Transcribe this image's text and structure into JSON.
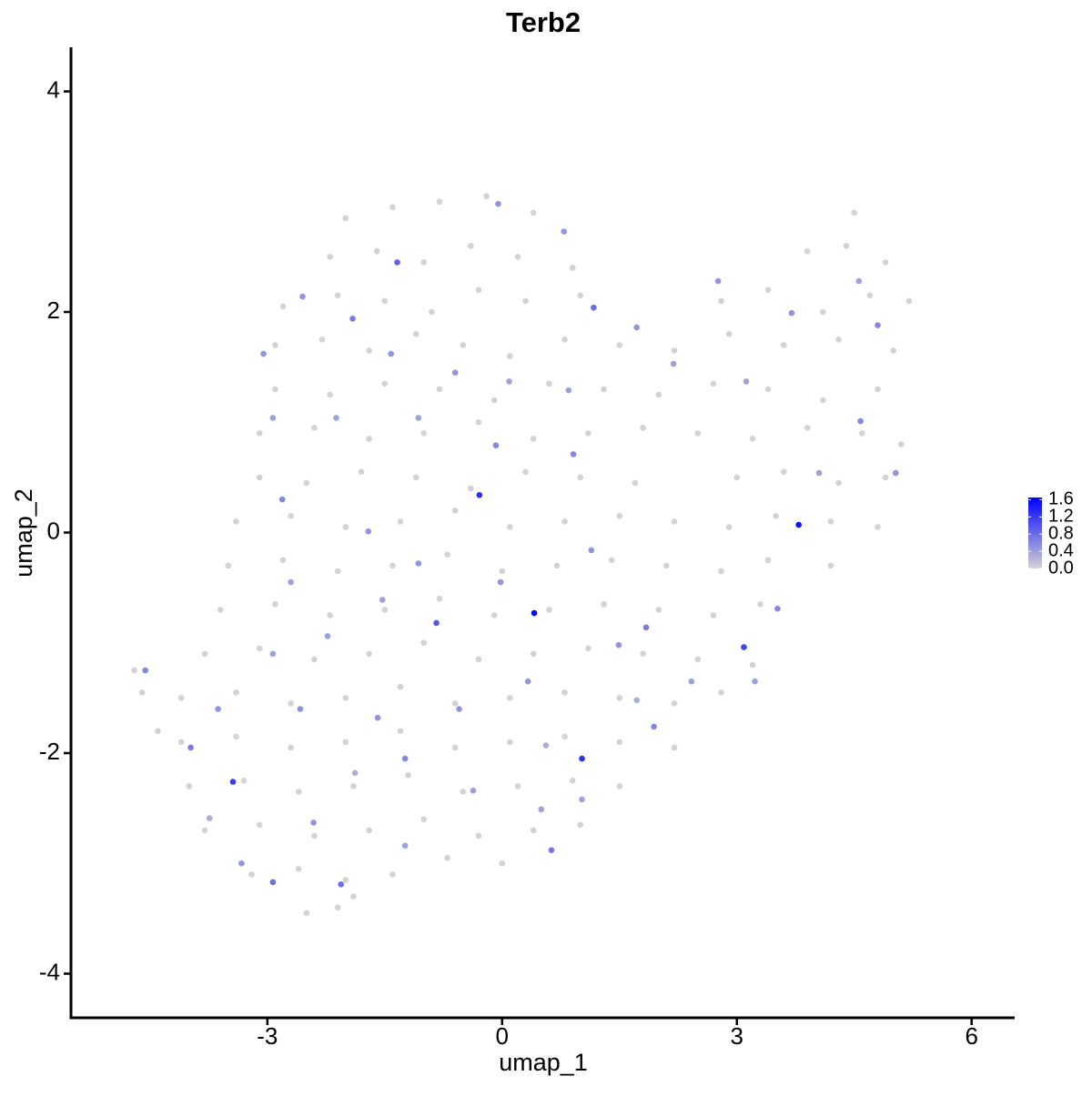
{
  "chart_data": {
    "type": "scatter",
    "title": "Terb2",
    "x_label": "umap_1",
    "y_label": "umap_2",
    "xlim": [
      -5.51,
      6.55
    ],
    "xticks": [
      -3,
      0,
      3,
      6
    ],
    "ylim": [
      -4.4,
      4.4
    ],
    "yticks": [
      -4,
      -2,
      0,
      2,
      4
    ],
    "color_low": "#d3d3d3",
    "color_high": "#0000ff",
    "color_lim": [
      0,
      1.65
    ],
    "color_ticks": [
      {
        "value": 0,
        "label": "0.0"
      },
      {
        "value": 0.4,
        "label": "0.4"
      },
      {
        "value": 0.8,
        "label": "0.8"
      },
      {
        "value": 1.2,
        "label": "1.2"
      },
      {
        "value": 1.6,
        "label": "1.6"
      }
    ],
    "x": [
      -2.0,
      -1.4,
      -0.8,
      -0.2,
      0.4,
      4.5,
      -2.2,
      -1.6,
      -1.0,
      -0.4,
      0.2,
      0.9,
      3.9,
      4.4,
      4.9,
      -2.8,
      -2.1,
      -1.5,
      -0.9,
      -0.3,
      0.3,
      1.0,
      2.8,
      3.4,
      4.1,
      4.7,
      5.2,
      -2.9,
      -2.3,
      -1.7,
      -1.1,
      -0.5,
      0.1,
      0.8,
      1.5,
      2.2,
      2.9,
      3.6,
      4.3,
      5.0,
      -2.9,
      -2.2,
      -1.5,
      -0.8,
      -0.1,
      0.6,
      1.3,
      2.0,
      2.7,
      3.4,
      4.1,
      4.8,
      -3.1,
      -2.4,
      -1.7,
      -1.0,
      -0.3,
      0.4,
      1.1,
      1.8,
      2.5,
      3.2,
      3.9,
      4.6,
      5.1,
      -3.1,
      -2.5,
      -1.8,
      -1.1,
      -0.4,
      0.3,
      1.0,
      1.7,
      3.0,
      3.6,
      4.3,
      4.9,
      -3.4,
      -2.7,
      -2.0,
      -1.3,
      -0.6,
      0.1,
      0.8,
      1.5,
      2.2,
      2.9,
      3.5,
      4.2,
      4.8,
      -3.5,
      -2.8,
      -2.1,
      -1.4,
      -0.7,
      0.0,
      0.7,
      1.4,
      2.1,
      2.8,
      3.4,
      4.2,
      -3.6,
      -2.9,
      -2.2,
      -1.5,
      -0.8,
      -0.1,
      0.6,
      1.3,
      2.0,
      2.7,
      3.3,
      -3.8,
      -3.1,
      -2.4,
      -1.7,
      -1.0,
      -0.3,
      0.4,
      1.1,
      1.8,
      2.5,
      3.2,
      -4.1,
      -3.4,
      -2.7,
      -2.0,
      -1.3,
      -0.6,
      0.1,
      0.8,
      1.5,
      2.2,
      2.8,
      -4.1,
      -3.4,
      -2.7,
      -2.0,
      -1.3,
      -0.6,
      0.1,
      0.8,
      1.5,
      2.2,
      -4.0,
      -3.3,
      -2.6,
      -1.9,
      -1.2,
      -0.5,
      0.2,
      0.9,
      1.5,
      -3.8,
      -3.1,
      -2.4,
      -1.7,
      -1.0,
      -0.3,
      0.4,
      1.0,
      -3.2,
      -2.6,
      -2.0,
      -1.4,
      -0.7,
      0.0,
      -2.5,
      -2.1,
      -1.9,
      -4.7,
      -4.6,
      -4.4,
      0.41,
      3.79,
      -0.29,
      1.02,
      -3.44,
      3.09,
      -0.84,
      -1.34,
      1.17,
      -1.91,
      -3.98,
      -2.93,
      -2.06,
      0.63,
      1.84,
      3.52,
      4.58,
      4.8,
      -1.24,
      -2.81,
      -0.08,
      0.91,
      1.94,
      -4.56,
      -0.05,
      0.79,
      -2.55,
      -3.05,
      -1.42,
      -0.6,
      1.72,
      2.76,
      3.7,
      5.03,
      -1.71,
      -1.07,
      -0.02,
      1.14,
      -3.63,
      -2.58,
      -1.59,
      -0.55,
      0.33,
      1.49,
      -3.33,
      -2.41,
      -1.24,
      -0.37,
      0.5,
      1.02,
      2.42,
      3.23,
      4.05,
      3.12,
      2.19,
      -2.93,
      -2.12,
      -1.07,
      0.09,
      0.85,
      -2.7,
      -2.23,
      -2.93,
      -1.53,
      4.56,
      0.56,
      1.72,
      -3.74,
      -1.88
    ],
    "values": [
      2.85,
      2.95,
      3.0,
      3.05,
      2.9,
      2.9,
      2.5,
      2.55,
      2.45,
      2.6,
      2.5,
      2.4,
      2.55,
      2.6,
      2.45,
      2.05,
      2.15,
      2.1,
      2.0,
      2.2,
      2.1,
      2.15,
      2.1,
      2.2,
      2.0,
      2.15,
      2.1,
      1.7,
      1.75,
      1.65,
      1.8,
      1.7,
      1.6,
      1.75,
      1.7,
      1.65,
      1.8,
      1.7,
      1.75,
      1.65,
      1.3,
      1.25,
      1.35,
      1.3,
      1.2,
      1.35,
      1.3,
      1.25,
      1.35,
      1.3,
      1.2,
      1.3,
      0.9,
      0.95,
      0.85,
      0.9,
      1.0,
      0.85,
      0.9,
      0.95,
      0.9,
      0.85,
      0.95,
      0.9,
      0.8,
      0.5,
      0.45,
      0.55,
      0.5,
      0.4,
      0.55,
      0.5,
      0.45,
      0.5,
      0.55,
      0.45,
      0.5,
      0.1,
      0.15,
      0.05,
      0.1,
      0.2,
      0.05,
      0.1,
      0.15,
      0.1,
      0.05,
      0.15,
      0.1,
      0.05,
      -0.3,
      -0.25,
      -0.35,
      -0.3,
      -0.2,
      -0.35,
      -0.3,
      -0.25,
      -0.3,
      -0.35,
      -0.25,
      -0.3,
      -0.7,
      -0.65,
      -0.75,
      -0.7,
      -0.6,
      -0.75,
      -0.7,
      -0.65,
      -0.7,
      -0.75,
      -0.65,
      -1.1,
      -1.05,
      -1.15,
      -1.1,
      -1.0,
      -1.15,
      -1.1,
      -1.05,
      -1.1,
      -1.15,
      -1.2,
      -1.5,
      -1.45,
      -1.55,
      -1.5,
      -1.4,
      -1.55,
      -1.5,
      -1.45,
      -1.5,
      -1.55,
      -1.45,
      -1.9,
      -1.85,
      -1.95,
      -1.9,
      -1.8,
      -1.95,
      -1.9,
      -1.85,
      -1.9,
      -1.95,
      -2.3,
      -2.25,
      -2.35,
      -2.3,
      -2.2,
      -2.35,
      -2.3,
      -2.25,
      -2.3,
      -2.7,
      -2.65,
      -2.75,
      -2.7,
      -2.6,
      -2.75,
      -2.7,
      -2.65,
      -3.1,
      -3.05,
      -3.15,
      -3.1,
      -2.95,
      -3.0,
      -3.45,
      -3.4,
      -3.3,
      -1.25,
      -1.45,
      -1.8,
      -0.73,
      0.07,
      0.34,
      -2.05,
      -2.26,
      -1.04,
      -0.82,
      2.45,
      2.04,
      1.94,
      -1.95,
      -3.17,
      -3.19,
      -2.88,
      -0.86,
      -0.69,
      1.01,
      1.88,
      -2.05,
      0.3,
      0.79,
      0.71,
      -1.76,
      -1.25,
      2.98,
      2.73,
      2.14,
      1.62,
      1.62,
      1.45,
      1.86,
      2.28,
      1.99,
      0.54,
      0.01,
      -0.28,
      -0.45,
      -0.16,
      -1.6,
      -1.6,
      -1.68,
      -1.6,
      -1.35,
      -1.02,
      -3.0,
      -2.63,
      -2.84,
      -2.34,
      -2.51,
      -2.42,
      -1.35,
      -1.35,
      0.54,
      1.37,
      1.53,
      1.04,
      1.04,
      1.04,
      1.37,
      1.29,
      -0.45,
      -0.94,
      -1.1,
      -0.61,
      2.28,
      -1.93,
      -1.52,
      -2.59,
      -2.18
    ],
    "expression": [
      0,
      0,
      0,
      0,
      0,
      0,
      0,
      0,
      0,
      0,
      0,
      0,
      0,
      0,
      0,
      0,
      0,
      0,
      0,
      0,
      0,
      0,
      0,
      0,
      0,
      0,
      0,
      0,
      0,
      0,
      0,
      0,
      0,
      0,
      0,
      0,
      0,
      0,
      0,
      0,
      0,
      0,
      0,
      0,
      0,
      0,
      0,
      0,
      0,
      0,
      0,
      0,
      0,
      0,
      0,
      0,
      0,
      0,
      0,
      0,
      0,
      0,
      0,
      0,
      0,
      0,
      0,
      0,
      0,
      0,
      0,
      0,
      0,
      0,
      0,
      0,
      0,
      0,
      0,
      0,
      0,
      0,
      0,
      0,
      0,
      0,
      0,
      0,
      0,
      0,
      0,
      0,
      0,
      0,
      0,
      0,
      0,
      0,
      0,
      0,
      0,
      0,
      0,
      0,
      0,
      0,
      0,
      0,
      0,
      0,
      0,
      0,
      0,
      0,
      0,
      0,
      0,
      0,
      0,
      0,
      0,
      0,
      0,
      0,
      0,
      0,
      0,
      0,
      0,
      0,
      0,
      0,
      0,
      0,
      0,
      0,
      0,
      0,
      0,
      0,
      0,
      0,
      0,
      0,
      0,
      0,
      0,
      0,
      0,
      0,
      0,
      0,
      0,
      0,
      0,
      0,
      0,
      0,
      0,
      0,
      0,
      0,
      0,
      0,
      0,
      0,
      0,
      0,
      0,
      0,
      0,
      0,
      0,
      0,
      1.6,
      1.5,
      1.3,
      1.3,
      1.2,
      1.1,
      1.0,
      0.9,
      0.8,
      0.7,
      0.7,
      0.8,
      0.8,
      0.7,
      0.7,
      0.6,
      0.6,
      0.6,
      0.6,
      0.6,
      0.6,
      0.6,
      0.6,
      0.6,
      0.5,
      0.5,
      0.5,
      0.5,
      0.5,
      0.5,
      0.5,
      0.5,
      0.5,
      0.5,
      0.5,
      0.5,
      0.5,
      0.5,
      0.5,
      0.5,
      0.5,
      0.5,
      0.5,
      0.5,
      0.5,
      0.5,
      0.4,
      0.4,
      0.4,
      0.4,
      0.4,
      0.4,
      0.4,
      0.4,
      0.4,
      0.4,
      0.4,
      0.4,
      0.4,
      0.4,
      0.4,
      0.4,
      0.4,
      0.4,
      0.4,
      0.3,
      0.3,
      0.3,
      0.3
    ]
  }
}
